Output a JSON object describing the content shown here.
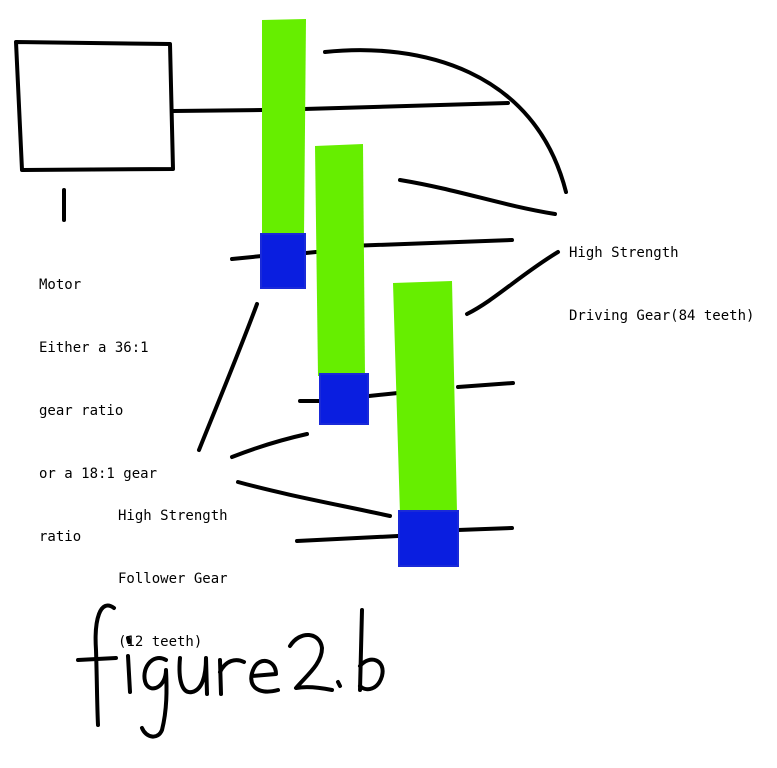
{
  "colors": {
    "ink": "#000000",
    "driving_gear": "#66ee00",
    "follower_gear": "#0a1ee0",
    "background": "#ffffff"
  },
  "motor": {
    "label_lines": [
      "Motor",
      "Either a 36:1",
      "gear ratio",
      "or a 18:1 gear",
      "ratio"
    ]
  },
  "driving_gear": {
    "label_lines": [
      "High Strength",
      "Driving Gear(84 teeth)"
    ]
  },
  "follower_gear": {
    "label_lines": [
      "High Strength",
      "Follower Gear",
      "(12 teeth)"
    ]
  },
  "caption": "figure 2.b"
}
